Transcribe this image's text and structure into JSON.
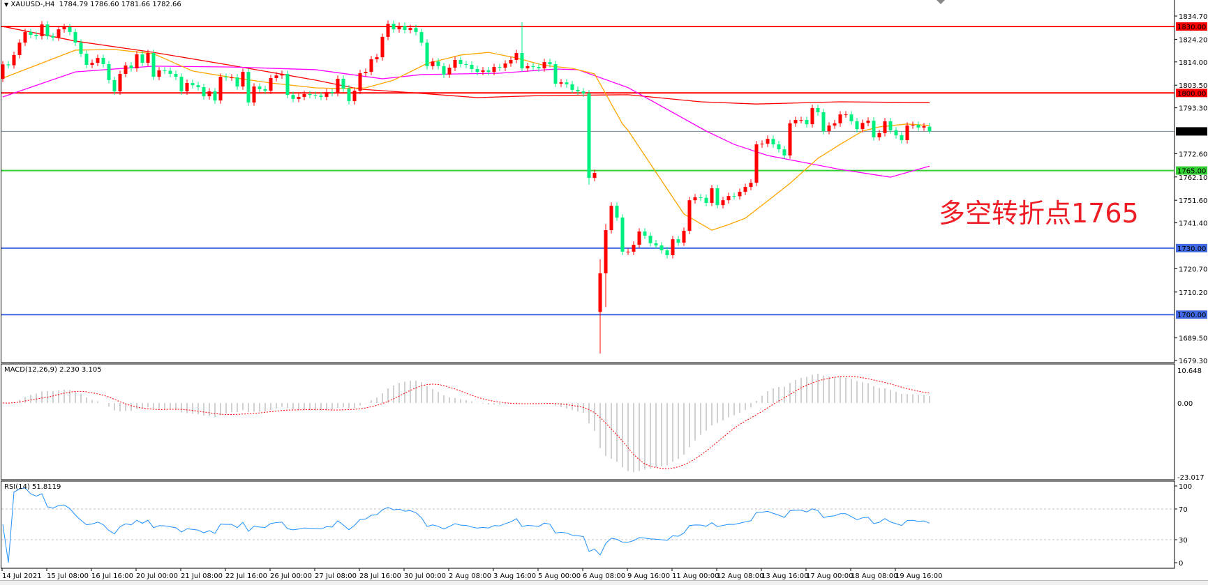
{
  "header": {
    "symbol_label": "XAUUSD-,H4",
    "ohlc_readout": "1784.79 1786.60 1781.66 1782.66"
  },
  "annotation": "多空转折点1765",
  "colors": {
    "up_candle": "#ff0000",
    "down_candle": "#00f080",
    "ma_fast": "#ffa500",
    "ma_mid": "#ff00ff",
    "ma_slow": "#ff0000",
    "macd_histogram": "#c0c0c0",
    "macd_signal": "#ff0000",
    "rsi_line": "#1e90ff",
    "price_line": "#778899"
  },
  "price_axis": {
    "ticks": [
      "1834.70",
      "1824.20",
      "1814.00",
      "1803.50",
      "1793.30",
      "1772.60",
      "1762.10",
      "1751.60",
      "1741.40",
      "1720.70",
      "1710.20",
      "1689.50",
      "1679.30"
    ],
    "range": [
      1679.3,
      1834.7
    ]
  },
  "levels": [
    {
      "price": 1830,
      "label": "1830.00",
      "color": "#ff0000"
    },
    {
      "price": 1800,
      "label": "1800.00",
      "color": "#ff0000"
    },
    {
      "price": 1782.66,
      "label": "1782.66",
      "color": "#778899",
      "tag_color": "#000000"
    },
    {
      "price": 1765,
      "label": "1765.00",
      "color": "#32cd32"
    },
    {
      "price": 1730,
      "label": "1730.00",
      "color": "#4169e1"
    },
    {
      "price": 1700,
      "label": "1700.00",
      "color": "#4169e1"
    }
  ],
  "time_axis": [
    "14 Jul 2021",
    "15 Jul 08:00",
    "16 Jul 16:00",
    "20 Jul 00:00",
    "21 Jul 08:00",
    "22 Jul 16:00",
    "26 Jul 00:00",
    "27 Jul 08:00",
    "28 Jul 16:00",
    "30 Jul 00:00",
    "2 Aug 08:00",
    "3 Aug 16:00",
    "5 Aug 00:00",
    "6 Aug 08:00",
    "9 Aug 16:00",
    "11 Aug 00:00",
    "12 Aug 08:00",
    "13 Aug 16:00",
    "17 Aug 00:00",
    "18 Aug 08:00",
    "19 Aug 16:00"
  ],
  "macd": {
    "label": "MACD(12,26,9) 2.230 3.105",
    "ticks": [
      "10.648",
      "0.00",
      "-23.017"
    ],
    "range": [
      -23.017,
      10.648
    ]
  },
  "rsi": {
    "label": "RSI(14) 51.8119",
    "ticks": [
      "100",
      "70",
      "30",
      "0"
    ],
    "levels": [
      70,
      30
    ]
  },
  "chart_data": {
    "type": "candlestick",
    "timeframe": "H4",
    "first_open": 1806.4,
    "close": [
      1812.9,
      1812.5,
      1817.1,
      1822.7,
      1827.5,
      1826.2,
      1825.6,
      1830.9,
      1825.6,
      1825.0,
      1828.7,
      1829.7,
      1827.5,
      1822.7,
      1817.7,
      1812.7,
      1813.6,
      1815.8,
      1813.0,
      1805.8,
      1800.7,
      1808.6,
      1812.4,
      1811.1,
      1817.4,
      1813.6,
      1818.0,
      1807.3,
      1810.2,
      1810.0,
      1808.6,
      1807.3,
      1800.7,
      1804.5,
      1803.5,
      1802.6,
      1798.5,
      1800.7,
      1796.6,
      1807.3,
      1807.0,
      1807.0,
      1802.9,
      1809.5,
      1795.7,
      1802.9,
      1801.7,
      1801.0,
      1806.7,
      1807.9,
      1808.6,
      1799.1,
      1797.3,
      1798.2,
      1799.5,
      1799.1,
      1798.8,
      1798.2,
      1800.4,
      1800.0,
      1806.4,
      1802.0,
      1796.3,
      1801.0,
      1808.9,
      1809.5,
      1815.2,
      1816.1,
      1825.3,
      1831.2,
      1828.7,
      1830.3,
      1828.4,
      1829.3,
      1827.5,
      1822.7,
      1812.1,
      1814.2,
      1812.1,
      1808.3,
      1811.4,
      1814.9,
      1813.0,
      1812.7,
      1810.8,
      1809.5,
      1810.2,
      1809.5,
      1811.7,
      1811.4,
      1813.3,
      1814.9,
      1818.0,
      1811.1,
      1812.1,
      1811.7,
      1811.1,
      1813.9,
      1813.0,
      1804.2,
      1804.8,
      1803.9,
      1801.4,
      1800.7,
      1799.8,
      1761.7,
      1763.9,
      1718.6,
      1738.1,
      1749.1,
      1743.8,
      1728.4,
      1728.4,
      1731.5,
      1737.5,
      1735.6,
      1732.2,
      1731.2,
      1729.0,
      1726.8,
      1734.0,
      1732.5,
      1737.8,
      1751.6,
      1752.9,
      1752.7,
      1750.4,
      1757.0,
      1749.4,
      1751.6,
      1753.5,
      1753.4,
      1755.4,
      1757.6,
      1759.5,
      1776.8,
      1777.1,
      1779.3,
      1776.8,
      1774.6,
      1771.8,
      1786.3,
      1787.8,
      1787.8,
      1785.9,
      1793.2,
      1791.3,
      1782.8,
      1785.3,
      1786.3,
      1790.3,
      1790.3,
      1787.2,
      1783.7,
      1786.5,
      1787.5,
      1780.0,
      1781.9,
      1787.2,
      1783.1,
      1780.9,
      1778.7,
      1785.3,
      1785.6,
      1784.4,
      1785.0,
      1782.66
    ],
    "notable_bars": [
      {
        "bar": 93,
        "high": 1831.9
      },
      {
        "bar": 105,
        "low": 1758.6
      },
      {
        "bar": 107,
        "open": 1701.2,
        "high": 1725.0,
        "low": 1682.4
      },
      {
        "bar": 108,
        "high": 1740.9,
        "low": 1703.4
      },
      {
        "bar": 166,
        "open": 1784.79,
        "high": 1786.6,
        "low": 1781.66
      }
    ],
    "moving_averages": [
      {
        "color_key": "ma_slow",
        "points": [
          [
            0,
            1830
          ],
          [
            13,
            1823.4
          ],
          [
            27,
            1818.3
          ],
          [
            41,
            1812.4
          ],
          [
            56,
            1805.8
          ],
          [
            64,
            1801.7
          ],
          [
            75,
            1799.8
          ],
          [
            85,
            1797.9
          ],
          [
            96,
            1798.8
          ],
          [
            112,
            1799.2
          ],
          [
            125,
            1796
          ],
          [
            135,
            1795
          ],
          [
            150,
            1796
          ],
          [
            166,
            1795.6
          ]
        ]
      },
      {
        "color_key": "ma_mid",
        "points": [
          [
            0,
            1798.2
          ],
          [
            13,
            1809.5
          ],
          [
            27,
            1812.1
          ],
          [
            41,
            1811.7
          ],
          [
            56,
            1810.5
          ],
          [
            68,
            1806.4
          ],
          [
            75,
            1808.3
          ],
          [
            89,
            1808.9
          ],
          [
            99,
            1810.8
          ],
          [
            103,
            1810.5
          ],
          [
            112,
            1802.4
          ],
          [
            126,
            1782.8
          ],
          [
            131,
            1776.8
          ],
          [
            137,
            1771.8
          ],
          [
            150,
            1765.5
          ],
          [
            159,
            1762
          ],
          [
            166,
            1767
          ]
        ]
      },
      {
        "color_key": "ma_fast",
        "points": [
          [
            0,
            1806.7
          ],
          [
            13,
            1819.3
          ],
          [
            20,
            1819.6
          ],
          [
            27,
            1817.7
          ],
          [
            34,
            1809.9
          ],
          [
            41,
            1807
          ],
          [
            48,
            1804.5
          ],
          [
            56,
            1802.3
          ],
          [
            60,
            1802
          ],
          [
            65,
            1802.3
          ],
          [
            70,
            1805.8
          ],
          [
            76,
            1813.3
          ],
          [
            82,
            1817.1
          ],
          [
            87,
            1818.3
          ],
          [
            92,
            1815.8
          ],
          [
            97,
            1812.4
          ],
          [
            102,
            1811.1
          ],
          [
            106,
            1808.6
          ],
          [
            111,
            1786
          ],
          [
            112,
            1783.1
          ],
          [
            117,
            1764.2
          ],
          [
            122,
            1745.4
          ],
          [
            127,
            1738.1
          ],
          [
            130,
            1740.6
          ],
          [
            133,
            1743.5
          ],
          [
            137,
            1751.3
          ],
          [
            141,
            1759.2
          ],
          [
            146,
            1770.5
          ],
          [
            150,
            1776.8
          ],
          [
            154,
            1782.8
          ],
          [
            157,
            1784.7
          ],
          [
            162,
            1786
          ],
          [
            166,
            1785.3
          ]
        ]
      }
    ]
  }
}
